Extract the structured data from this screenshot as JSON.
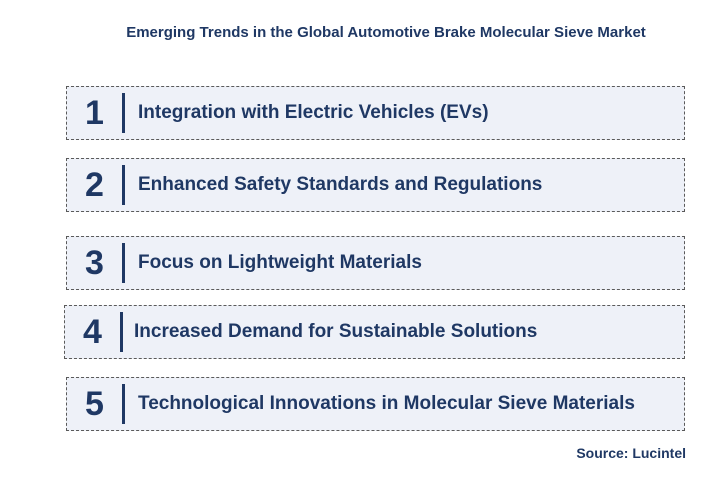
{
  "title": "Emerging Trends in the Global Automotive Brake Molecular Sieve Market",
  "trends": [
    {
      "number": "1",
      "label": "Integration with Electric Vehicles (EVs)"
    },
    {
      "number": "2",
      "label": "Enhanced Safety Standards and Regulations"
    },
    {
      "number": "3",
      "label": "Focus on Lightweight Materials"
    },
    {
      "number": "4",
      "label": "Increased Demand for Sustainable Solutions"
    },
    {
      "number": "5",
      "label": "Technological Innovations in Molecular Sieve Materials"
    }
  ],
  "source": "Source: Lucintel",
  "colors": {
    "text": "#1f3864",
    "box_fill": "#eef1f8",
    "box_border": "#5a5a5a"
  }
}
